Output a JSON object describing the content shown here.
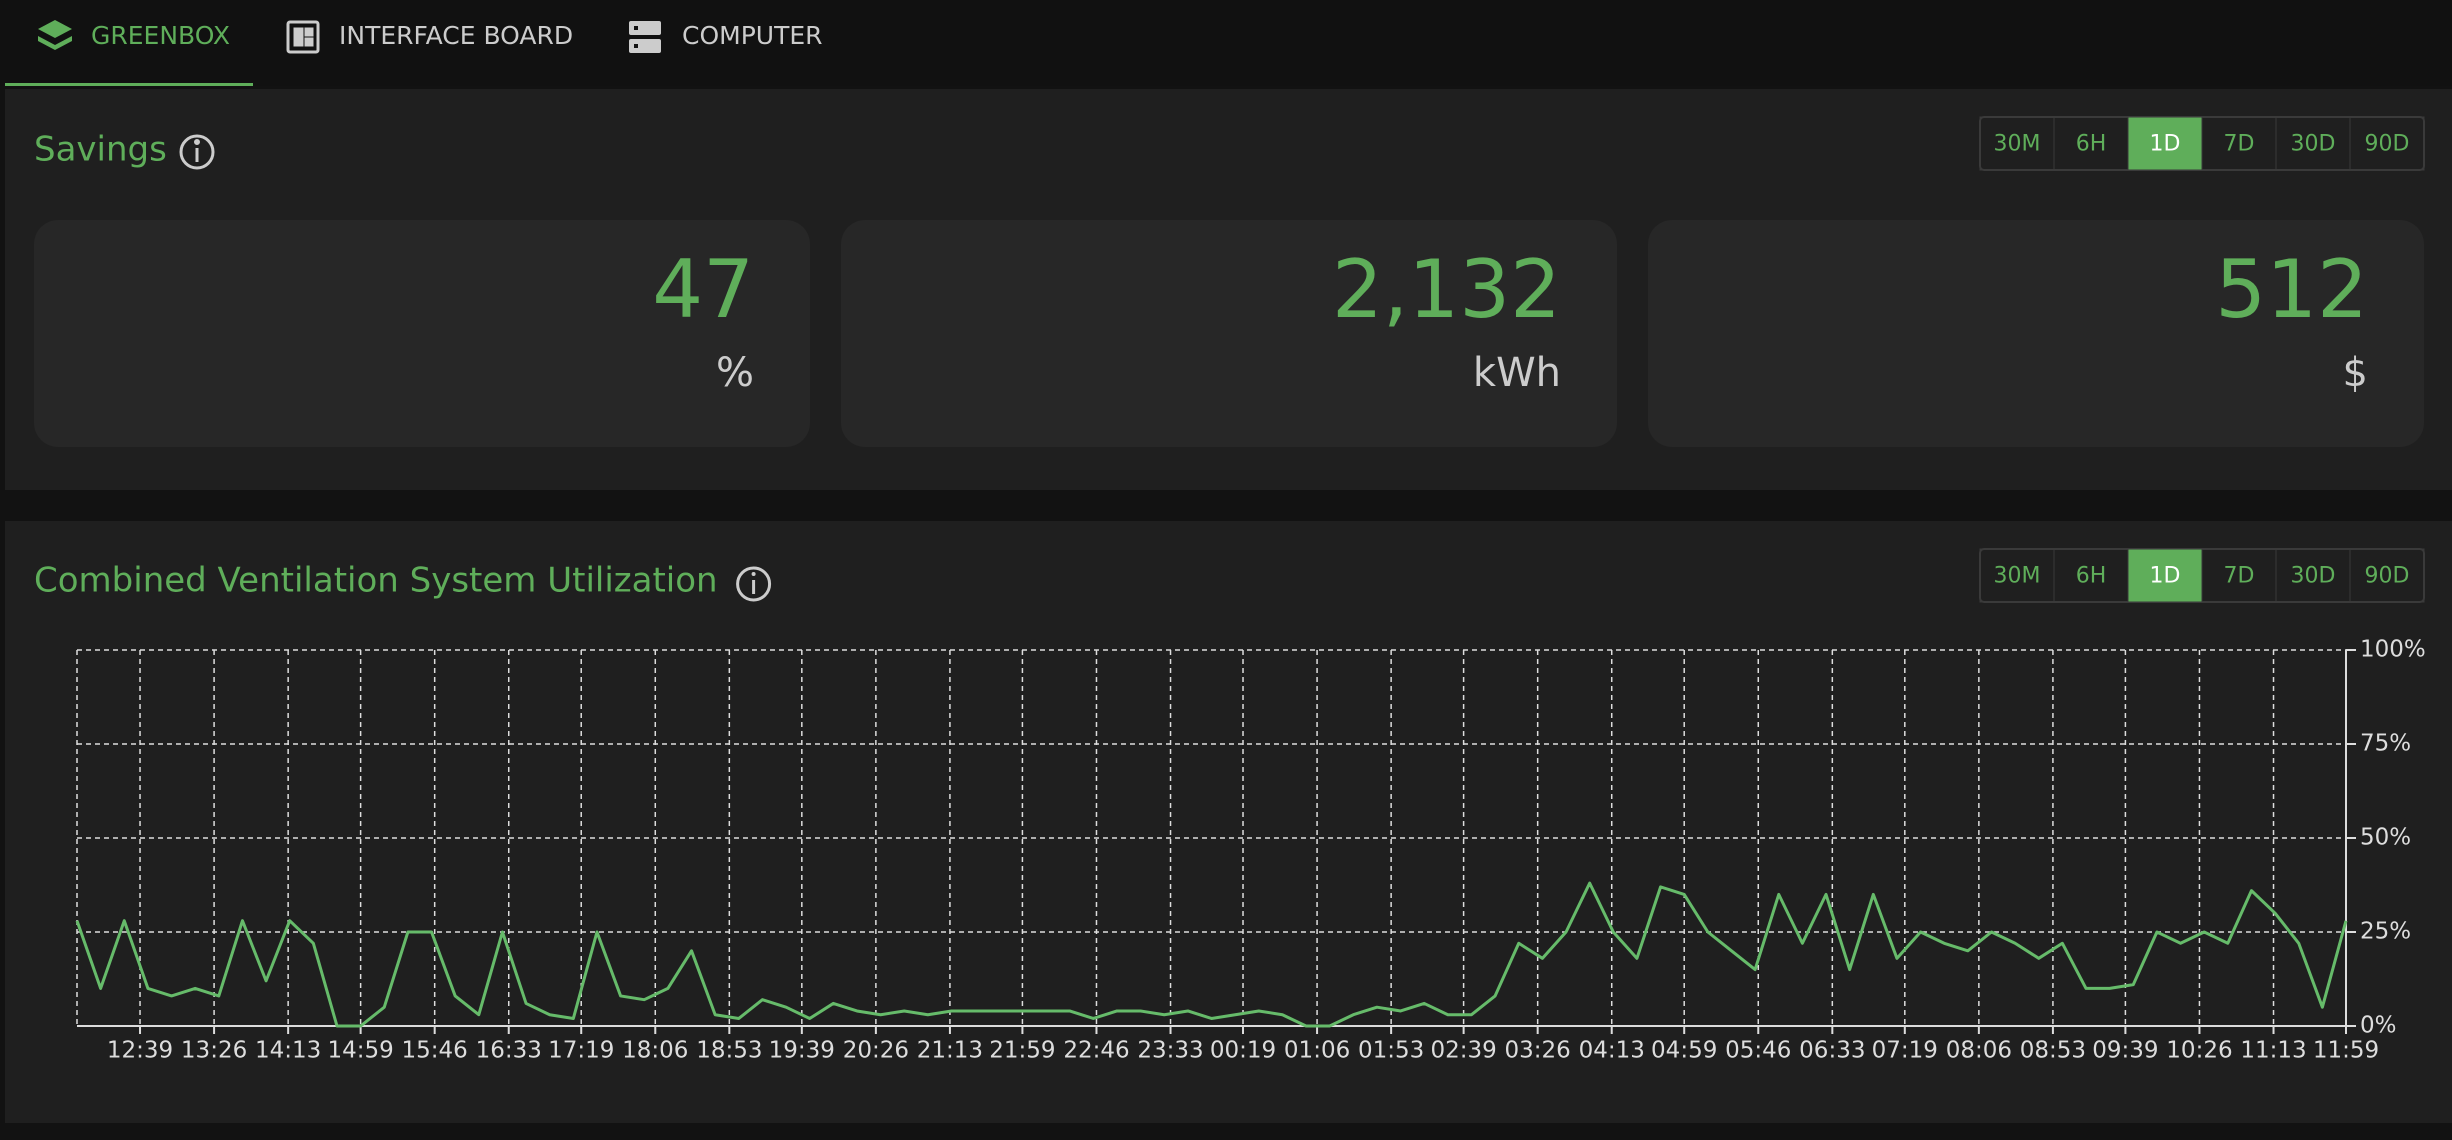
{
  "tabs": [
    {
      "label": "GREENBOX"
    },
    {
      "label": "INTERFACE BOARD"
    },
    {
      "label": "COMPUTER"
    }
  ],
  "active_tab": 0,
  "savings": {
    "title": "Savings",
    "ranges": [
      "30M",
      "6H",
      "1D",
      "7D",
      "30D",
      "90D"
    ],
    "selected_range": 2,
    "cards": [
      {
        "value": "47",
        "unit": "%"
      },
      {
        "value": "2,132",
        "unit": "kWh"
      },
      {
        "value": "512",
        "unit": "$"
      }
    ]
  },
  "chart_ranges": [
    "30M",
    "6H",
    "1D",
    "7D",
    "30D",
    "90D"
  ],
  "chart_selected_range": 2,
  "chart_data": {
    "type": "line",
    "title": "Combined Ventilation System Utilization",
    "color": "#66bb6a",
    "grid": true,
    "xlim": [
      0,
      1440
    ],
    "ylim": [
      0,
      100
    ],
    "yticks": [
      {
        "value": 0,
        "label": "0%"
      },
      {
        "value": 25,
        "label": "25%"
      },
      {
        "value": 50,
        "label": "50%"
      },
      {
        "value": 75,
        "label": "75%"
      },
      {
        "value": 100,
        "label": "100%"
      }
    ],
    "xticks": [
      {
        "value": 40,
        "label": "12:39"
      },
      {
        "value": 87,
        "label": "13:26"
      },
      {
        "value": 134,
        "label": "14:13"
      },
      {
        "value": 180,
        "label": "14:59"
      },
      {
        "value": 227,
        "label": "15:46"
      },
      {
        "value": 274,
        "label": "16:33"
      },
      {
        "value": 320,
        "label": "17:19"
      },
      {
        "value": 367,
        "label": "18:06"
      },
      {
        "value": 414,
        "label": "18:53"
      },
      {
        "value": 460,
        "label": "19:39"
      },
      {
        "value": 507,
        "label": "20:26"
      },
      {
        "value": 554,
        "label": "21:13"
      },
      {
        "value": 600,
        "label": "21:59"
      },
      {
        "value": 647,
        "label": "22:46"
      },
      {
        "value": 694,
        "label": "23:33"
      },
      {
        "value": 740,
        "label": "00:19"
      },
      {
        "value": 787,
        "label": "01:06"
      },
      {
        "value": 834,
        "label": "01:53"
      },
      {
        "value": 880,
        "label": "02:39"
      },
      {
        "value": 927,
        "label": "03:26"
      },
      {
        "value": 974,
        "label": "04:13"
      },
      {
        "value": 1020,
        "label": "04:59"
      },
      {
        "value": 1067,
        "label": "05:46"
      },
      {
        "value": 1114,
        "label": "06:33"
      },
      {
        "value": 1160,
        "label": "07:19"
      },
      {
        "value": 1207,
        "label": "08:06"
      },
      {
        "value": 1254,
        "label": "08:53"
      },
      {
        "value": 1300,
        "label": "09:39"
      },
      {
        "value": 1347,
        "label": "10:26"
      },
      {
        "value": 1394,
        "label": "11:13"
      },
      {
        "value": 1440,
        "label": "11:59"
      }
    ],
    "x": [
      0,
      15,
      30,
      45,
      60,
      75,
      90,
      105,
      120,
      135,
      150,
      165,
      180,
      195,
      210,
      225,
      240,
      255,
      270,
      285,
      300,
      315,
      330,
      345,
      360,
      375,
      390,
      405,
      420,
      435,
      450,
      465,
      480,
      495,
      510,
      525,
      540,
      555,
      570,
      585,
      600,
      615,
      630,
      645,
      660,
      675,
      690,
      705,
      720,
      735,
      750,
      765,
      780,
      795,
      810,
      825,
      840,
      855,
      870,
      885,
      900,
      915,
      930,
      945,
      960,
      975,
      990,
      1005,
      1020,
      1035,
      1050,
      1065,
      1080,
      1095,
      1110,
      1125,
      1140,
      1155,
      1170,
      1185,
      1200,
      1215,
      1230,
      1245,
      1260,
      1275,
      1290,
      1305,
      1320,
      1335,
      1350,
      1365,
      1380,
      1395,
      1410,
      1425,
      1440
    ],
    "values": [
      28,
      10,
      28,
      10,
      8,
      10,
      8,
      28,
      12,
      28,
      22,
      0,
      0,
      5,
      25,
      25,
      8,
      3,
      25,
      6,
      3,
      2,
      25,
      8,
      7,
      10,
      20,
      3,
      2,
      7,
      5,
      2,
      6,
      4,
      3,
      4,
      3,
      4,
      4,
      4,
      4,
      4,
      4,
      2,
      4,
      4,
      3,
      4,
      2,
      3,
      4,
      3,
      0,
      0,
      3,
      5,
      4,
      6,
      3,
      3,
      8,
      22,
      18,
      25,
      38,
      25,
      18,
      37,
      35,
      25,
      20,
      15,
      35,
      22,
      35,
      15,
      35,
      18,
      25,
      22,
      20,
      25,
      22,
      18,
      22,
      10,
      10,
      11,
      25,
      22,
      25,
      22,
      36,
      30,
      22,
      5,
      28
    ]
  }
}
